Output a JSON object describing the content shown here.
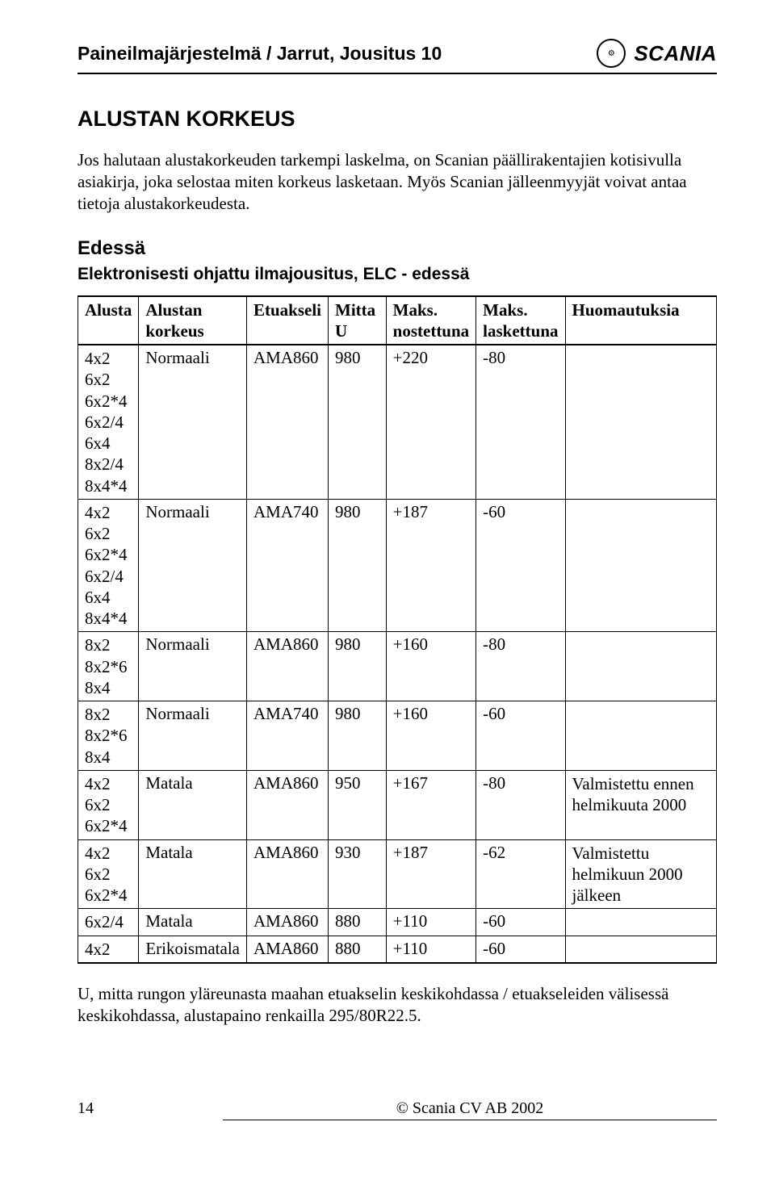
{
  "header": {
    "title": "Paineilmajärjestelmä / Jarrut, Jousitus 10",
    "brand": "SCANIA",
    "logo_glyph": "⚙"
  },
  "headings": {
    "main": "ALUSTAN KORKEUS",
    "sub": "Edessä",
    "subsub": "Elektronisesti ohjattu ilmajousitus, ELC - edessä"
  },
  "paragraphs": {
    "intro": "Jos halutaan alustakorkeuden tarkempi laskelma, on Scanian päällirakentajien kotisivulla asiakirja, joka selostaa miten korkeus lasketaan. Myös Scanian jälleenmyyjät voivat antaa tietoja alustakorkeudesta.",
    "note": "U, mitta rungon yläreunasta maahan etuakselin keskikohdassa / etuakseleiden välisessä keskikohdassa, alustapaino renkailla 295/80R22.5."
  },
  "table": {
    "columns": [
      "Alusta",
      "Alustan\nkorkeus",
      "Etuakseli",
      "Mitta U",
      "Maks.\nnostettuna",
      "Maks.\nlaskettuna",
      "Huomautuksia"
    ],
    "rows": [
      {
        "cells": [
          "4x2\n6x2\n6x2*4\n6x2/4\n6x4\n8x2/4\n8x4*4",
          "Normaali",
          "AMA860",
          "980",
          "+220",
          "-80",
          ""
        ]
      },
      {
        "cells": [
          "4x2\n6x2\n6x2*4\n6x2/4\n6x4\n8x4*4",
          "Normaali",
          "AMA740",
          "980",
          "+187",
          "-60",
          ""
        ]
      },
      {
        "cells": [
          "8x2\n8x2*6\n8x4",
          "Normaali",
          "AMA860",
          "980",
          "+160",
          "-80",
          ""
        ]
      },
      {
        "cells": [
          "8x2\n8x2*6\n8x4",
          "Normaali",
          "AMA740",
          "980",
          "+160",
          "-60",
          ""
        ]
      },
      {
        "cells": [
          "4x2\n6x2\n6x2*4",
          "Matala",
          "AMA860",
          "950",
          "+167",
          "-80",
          "Valmistettu ennen helmikuuta 2000"
        ]
      },
      {
        "cells": [
          "4x2\n6x2\n6x2*4",
          "Matala",
          "AMA860",
          "930",
          "+187",
          "-62",
          "Valmistettu helmikuun 2000 jälkeen"
        ]
      },
      {
        "cells": [
          "6x2/4",
          "Matala",
          "AMA860",
          "880",
          "+110",
          "-60",
          ""
        ]
      },
      {
        "cells": [
          "4x2",
          "Erikoismatala",
          "AMA860",
          "880",
          "+110",
          "-60",
          ""
        ]
      }
    ]
  },
  "footer": {
    "page_no": "14",
    "copyright": "© Scania CV AB 2002"
  }
}
